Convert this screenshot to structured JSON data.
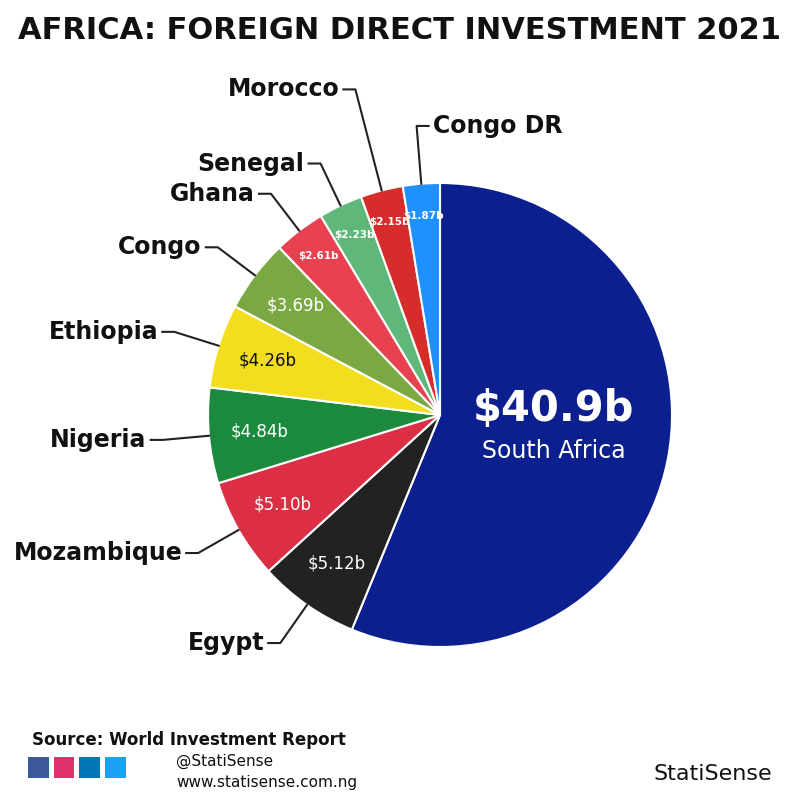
{
  "chart_data": {
    "type": "pie",
    "title": "AFRICA: FOREIGN DIRECT INVESTMENT 2021",
    "categories": [
      "South Africa",
      "Egypt",
      "Mozambique",
      "Nigeria",
      "Ethiopia",
      "Congo",
      "Ghana",
      "Senegal",
      "Morocco",
      "Congo DR"
    ],
    "values": [
      40.9,
      5.12,
      5.1,
      4.84,
      4.26,
      3.69,
      2.61,
      2.23,
      2.15,
      1.87
    ],
    "value_labels": [
      "$40.9b",
      "$5.12b",
      "$5.10b",
      "$4.84b",
      "$4.26b",
      "$3.69b",
      "$2.61b",
      "$2.23b",
      "$2.15b",
      "$1.87b"
    ],
    "colors": [
      "#0b1f8f",
      "#222222",
      "#dc2f45",
      "#1c8a3c",
      "#f2de1e",
      "#7aa843",
      "#e8414f",
      "#5fb87a",
      "#d72c2c",
      "#1e90ff"
    ],
    "data_labels": true,
    "source": "Source: World Investment Report",
    "annotations": [
      "@StatiSense",
      "www.statisense.com.ng",
      "StatiSense"
    ]
  }
}
